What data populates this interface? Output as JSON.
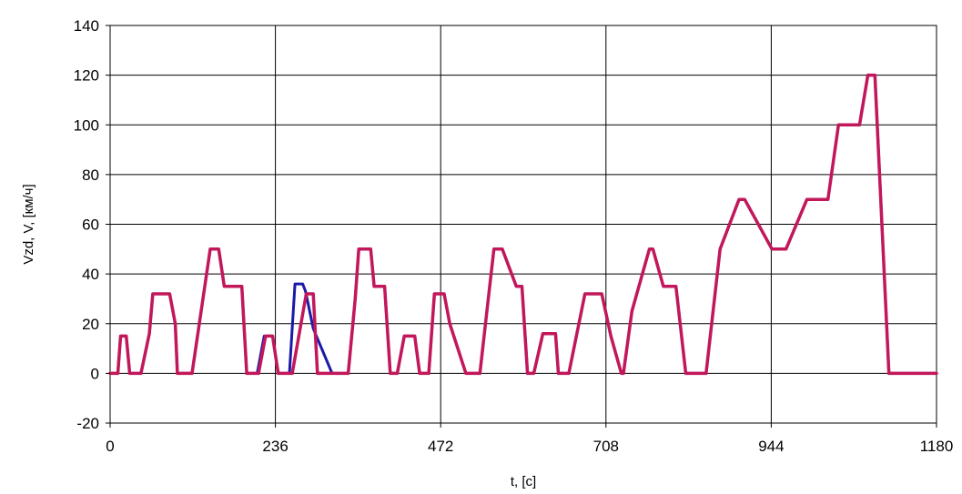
{
  "chart_data": {
    "type": "line",
    "title": "",
    "xlabel": "t, [c]",
    "ylabel": "Vzd, V,  [км/ч]",
    "xlim": [
      0,
      1180
    ],
    "ylim": [
      -20,
      140
    ],
    "x_ticks": [
      0,
      236,
      472,
      708,
      944,
      1180
    ],
    "y_ticks": [
      -20,
      0,
      20,
      40,
      60,
      80,
      100,
      120,
      140
    ],
    "x_tick_labels": [
      "0",
      "236",
      "472",
      "708",
      "944",
      "1180"
    ],
    "y_tick_labels": [
      "-20",
      "0",
      "20",
      "40",
      "60",
      "80",
      "100",
      "120",
      "140"
    ],
    "grid": true,
    "legend": "none",
    "series": [
      {
        "color": "#1a1aa8",
        "x": [
          0,
          11,
          15,
          23,
          28,
          44,
          56,
          61,
          85,
          93,
          96,
          117,
          143,
          155,
          163,
          188,
          195,
          208,
          210,
          220,
          232,
          240,
          256,
          264,
          275,
          279,
          290,
          317,
          340,
          350,
          355,
          372,
          377,
          392,
          400,
          410,
          420,
          435,
          442,
          455,
          463,
          477,
          485,
          508,
          528,
          540,
          548,
          560,
          580,
          588,
          596,
          605,
          618,
          636,
          640,
          655,
          678,
          700,
          702,
          715,
          730,
          733,
          745,
          770,
          775,
          790,
          808,
          822,
          830,
          851,
          871,
          898,
          906,
          945,
          956,
          965,
          995,
          1025,
          1040,
          1070,
          1082,
          1092,
          1112,
          1123,
          1165,
          1180
        ],
        "y": [
          0,
          0,
          15,
          15,
          0,
          0,
          16,
          32,
          32,
          20,
          0,
          0,
          50,
          50,
          35,
          35,
          0,
          0,
          0,
          15,
          15,
          0,
          0,
          36,
          36,
          33,
          18,
          0,
          0,
          30,
          50,
          50,
          35,
          35,
          0,
          0,
          15,
          15,
          0,
          0,
          32,
          32,
          20,
          0,
          0,
          30,
          50,
          50,
          35,
          35,
          0,
          0,
          16,
          16,
          0,
          0,
          32,
          32,
          32,
          15,
          0,
          0,
          25,
          50,
          50,
          35,
          35,
          0,
          0,
          0,
          50,
          70,
          70,
          50,
          50,
          50,
          70,
          70,
          100,
          100,
          120,
          120,
          0,
          0,
          0,
          0
        ]
      },
      {
        "color": "#c2185b",
        "x": [
          0,
          11,
          15,
          23,
          28,
          44,
          56,
          61,
          85,
          93,
          96,
          117,
          143,
          155,
          163,
          188,
          195,
          208,
          212,
          222,
          232,
          240,
          256,
          260,
          280,
          290,
          296,
          317,
          340,
          350,
          355,
          372,
          377,
          392,
          400,
          410,
          420,
          435,
          442,
          455,
          463,
          477,
          485,
          508,
          528,
          540,
          548,
          560,
          580,
          588,
          596,
          605,
          618,
          636,
          640,
          655,
          678,
          700,
          702,
          715,
          730,
          733,
          745,
          770,
          775,
          790,
          808,
          822,
          830,
          851,
          871,
          898,
          906,
          945,
          956,
          965,
          995,
          1025,
          1040,
          1070,
          1082,
          1092,
          1112,
          1123,
          1165,
          1180
        ],
        "y": [
          0,
          0,
          15,
          15,
          0,
          0,
          16,
          32,
          32,
          20,
          0,
          0,
          50,
          50,
          35,
          35,
          0,
          0,
          0,
          15,
          15,
          0,
          0,
          0,
          32,
          32,
          0,
          0,
          0,
          30,
          50,
          50,
          35,
          35,
          0,
          0,
          15,
          15,
          0,
          0,
          32,
          32,
          20,
          0,
          0,
          30,
          50,
          50,
          35,
          35,
          0,
          0,
          16,
          16,
          0,
          0,
          32,
          32,
          32,
          15,
          0,
          0,
          25,
          50,
          50,
          35,
          35,
          0,
          0,
          0,
          50,
          70,
          70,
          50,
          50,
          50,
          70,
          70,
          100,
          100,
          120,
          120,
          0,
          0,
          0,
          0
        ]
      }
    ]
  }
}
